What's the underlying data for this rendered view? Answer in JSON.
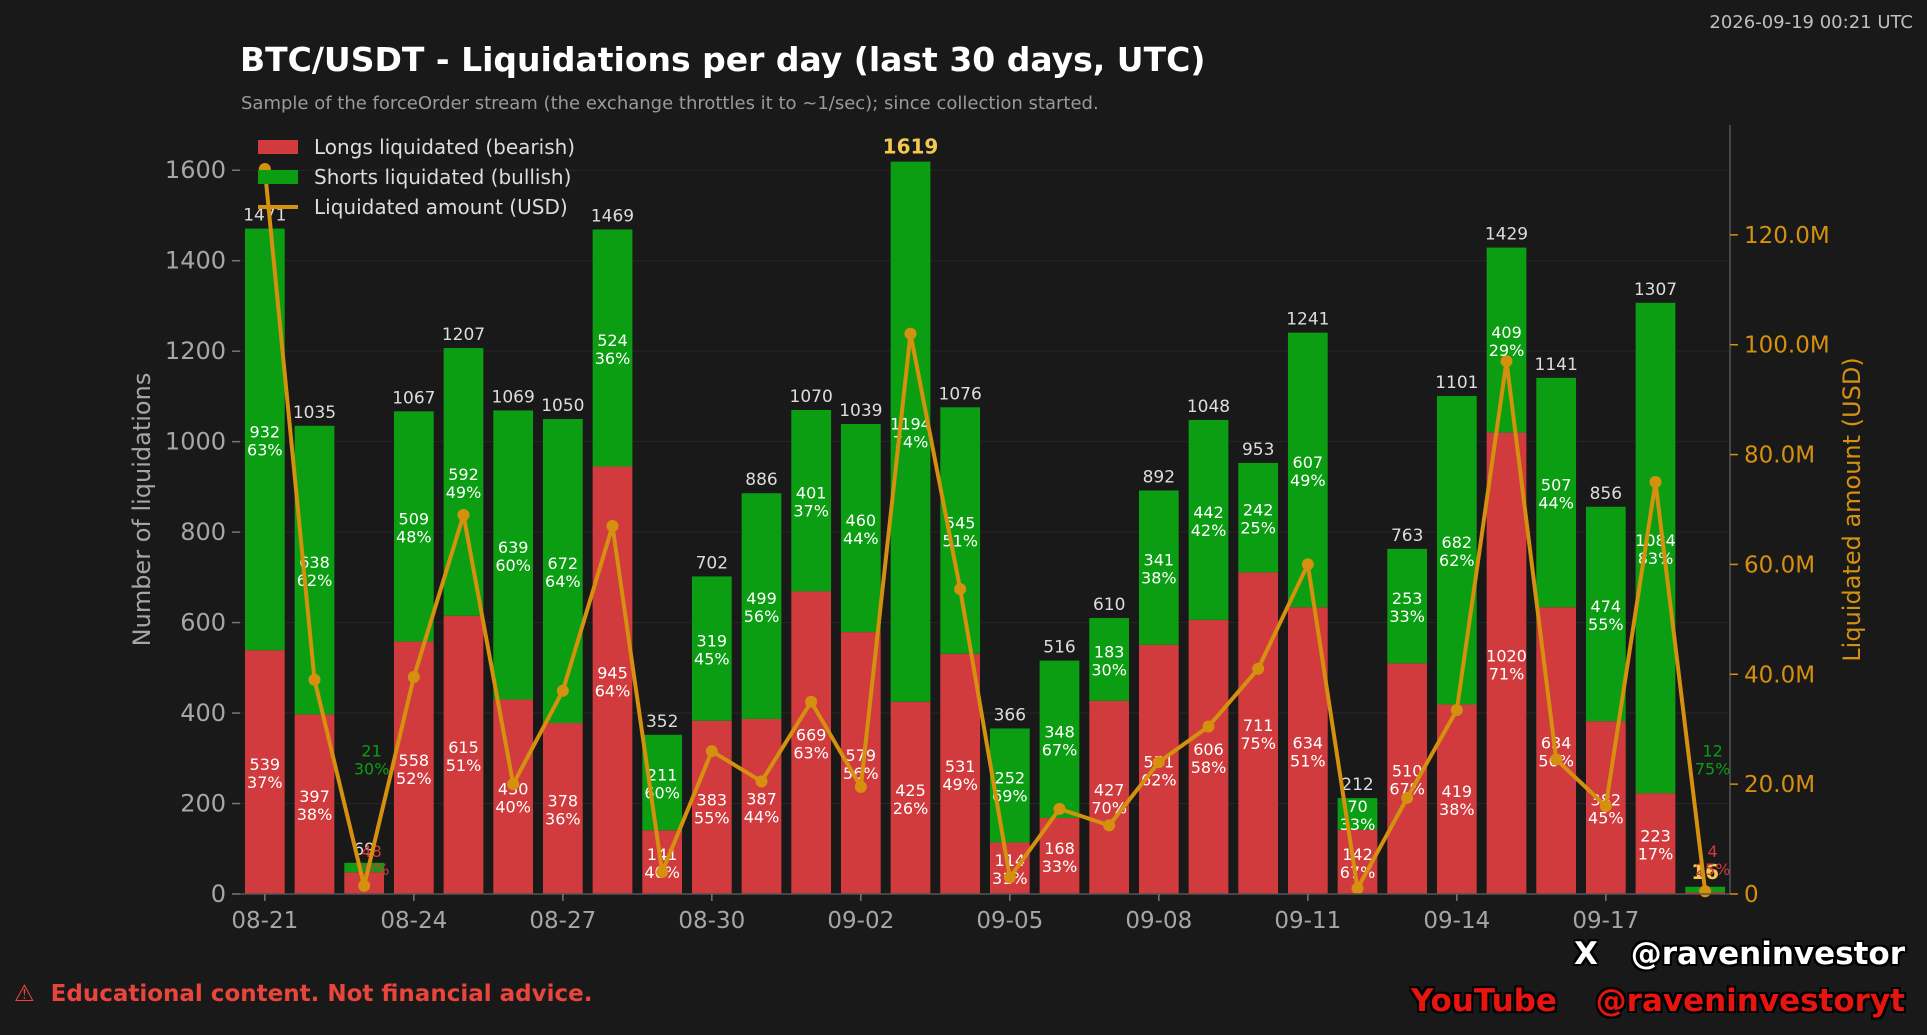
{
  "header": {
    "timestamp": "2026-09-19 00:21 UTC",
    "title": "BTC/USDT - Liquidations per day (last 30 days, UTC)",
    "subtitle": "Sample of the forceOrder stream (the exchange throttles it to ~1/sec); since collection started."
  },
  "footer": {
    "disclaimer_icon": "⚠",
    "disclaimer": "Educational content. Not financial advice.",
    "x_icon": "X",
    "x_handle": "@raveninvestor",
    "youtube_label": "YouTube",
    "youtube_handle": "@raveninvestoryt"
  },
  "colors": {
    "longs": "#d13b3d",
    "shorts": "#0c9e12",
    "amount": "#d4900e",
    "highlight_total": "#f2c94c",
    "grid": "#262626",
    "axis_text": "#a6a6a6"
  },
  "chart_data": {
    "type": "bar",
    "stacked": true,
    "categories": [
      "08-21",
      "08-22",
      "08-23",
      "08-24",
      "08-25",
      "08-26",
      "08-27",
      "08-28",
      "08-29",
      "08-30",
      "08-31",
      "09-01",
      "09-02",
      "09-03",
      "09-04",
      "09-05",
      "09-06",
      "09-07",
      "09-08",
      "09-09",
      "09-10",
      "09-11",
      "09-12",
      "09-13",
      "09-14",
      "09-15",
      "09-16",
      "09-17",
      "09-18",
      "09-19"
    ],
    "x_tick_labels": [
      "08-21",
      "08-24",
      "08-27",
      "08-30",
      "09-02",
      "09-05",
      "09-08",
      "09-11",
      "09-14",
      "09-17"
    ],
    "series": [
      {
        "name": "Longs liquidated (bearish)",
        "color": "#d13b3d",
        "values": [
          539,
          397,
          48,
          558,
          615,
          430,
          378,
          945,
          141,
          383,
          387,
          669,
          579,
          425,
          531,
          114,
          168,
          427,
          551,
          606,
          711,
          634,
          142,
          510,
          419,
          1020,
          634,
          382,
          223,
          4
        ],
        "pct_labels": [
          "37%",
          "38%",
          "70%",
          "52%",
          "51%",
          "40%",
          "36%",
          "64%",
          "40%",
          "55%",
          "44%",
          "63%",
          "56%",
          "26%",
          "49%",
          "31%",
          "33%",
          "70%",
          "62%",
          "58%",
          "75%",
          "51%",
          "67%",
          "67%",
          "38%",
          "71%",
          "56%",
          "45%",
          "17%",
          "25%"
        ]
      },
      {
        "name": "Shorts liquidated (bullish)",
        "color": "#0c9e12",
        "values": [
          932,
          638,
          21,
          509,
          592,
          639,
          672,
          524,
          211,
          319,
          499,
          401,
          460,
          1194,
          545,
          252,
          348,
          183,
          341,
          442,
          242,
          607,
          70,
          253,
          682,
          409,
          507,
          474,
          1084,
          12
        ],
        "pct_labels": [
          "63%",
          "62%",
          "30%",
          "48%",
          "49%",
          "60%",
          "64%",
          "36%",
          "60%",
          "45%",
          "56%",
          "37%",
          "44%",
          "74%",
          "51%",
          "69%",
          "67%",
          "30%",
          "38%",
          "42%",
          "25%",
          "49%",
          "33%",
          "33%",
          "62%",
          "29%",
          "44%",
          "55%",
          "83%",
          "75%"
        ]
      },
      {
        "name": "Liquidated amount (USD)",
        "axis": "right",
        "type": "line",
        "color": "#d4900e",
        "values": [
          132,
          39,
          1.5,
          39.5,
          69,
          20,
          37,
          67,
          4,
          26,
          20.5,
          35,
          19.5,
          102,
          55.5,
          3,
          15.5,
          12.5,
          24,
          30.5,
          41,
          60,
          1,
          17.5,
          33.5,
          97,
          24.5,
          16,
          75,
          0.5
        ]
      }
    ],
    "totals": [
      1471,
      1035,
      69,
      1067,
      1207,
      1069,
      1050,
      1469,
      352,
      702,
      886,
      1070,
      1039,
      1619,
      1076,
      366,
      516,
      610,
      892,
      1048,
      953,
      1241,
      212,
      763,
      1101,
      1429,
      1141,
      856,
      1307,
      16
    ],
    "highlighted_totals": [
      1619,
      16
    ],
    "ylabel": "Number of liquidations",
    "ylim": [
      0,
      1700
    ],
    "yticks": [
      0,
      200,
      400,
      600,
      800,
      1000,
      1200,
      1400,
      1600
    ],
    "y2label": "Liquidated amount (USD)",
    "y2lim": [
      0,
      140
    ],
    "y2ticks": [
      0,
      20,
      40,
      60,
      80,
      100,
      120
    ],
    "y2tick_labels": [
      "0",
      "20.0M",
      "40.0M",
      "60.0M",
      "80.0M",
      "100.0M",
      "120.0M"
    ],
    "legend_position": "top-left",
    "grid": true
  }
}
